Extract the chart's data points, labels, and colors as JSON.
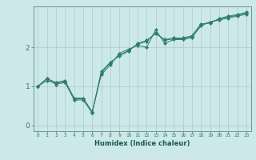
{
  "title": "",
  "xlabel": "Humidex (Indice chaleur)",
  "ylabel": "",
  "bg_color": "#cde8e8",
  "grid_color": "#a8cccc",
  "line_color": "#2e7d6e",
  "xlim": [
    -0.5,
    23.5
  ],
  "ylim": [
    -0.15,
    3.05
  ],
  "xticks": [
    0,
    1,
    2,
    3,
    4,
    5,
    6,
    7,
    8,
    9,
    10,
    11,
    12,
    13,
    14,
    15,
    16,
    17,
    18,
    19,
    20,
    21,
    22,
    23
  ],
  "yticks": [
    0,
    1,
    2
  ],
  "series": [
    [
      1.0,
      1.2,
      1.1,
      1.15,
      0.7,
      0.7,
      0.35,
      1.3,
      1.55,
      1.85,
      1.95,
      2.05,
      2.0,
      2.45,
      2.1,
      2.2,
      2.2,
      2.25,
      2.55,
      2.65,
      2.7,
      2.75,
      2.8,
      2.85
    ],
    [
      1.0,
      1.2,
      1.05,
      1.1,
      0.68,
      0.68,
      0.33,
      1.35,
      1.6,
      1.8,
      1.92,
      2.08,
      2.15,
      2.38,
      2.18,
      2.22,
      2.22,
      2.28,
      2.58,
      2.65,
      2.72,
      2.78,
      2.82,
      2.88
    ],
    [
      1.0,
      1.15,
      1.08,
      1.12,
      0.65,
      0.65,
      0.32,
      1.38,
      1.62,
      1.78,
      1.9,
      2.1,
      2.18,
      2.35,
      2.2,
      2.24,
      2.24,
      2.3,
      2.6,
      2.62,
      2.74,
      2.8,
      2.84,
      2.9
    ]
  ]
}
